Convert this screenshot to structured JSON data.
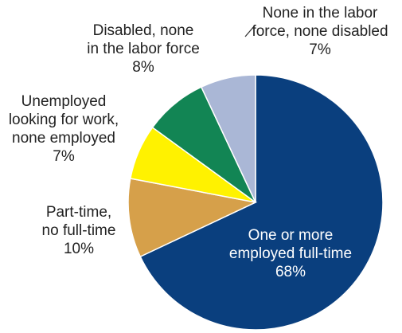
{
  "chart_data": {
    "type": "pie",
    "slices": [
      {
        "key": "fulltime",
        "lines": [
          "One or more",
          "employed full-time",
          "68%"
        ],
        "value": 68,
        "color": "#0a3f7e"
      },
      {
        "key": "parttime",
        "lines": [
          "Part-time,",
          "no full-time",
          "10%"
        ],
        "value": 10,
        "color": "#d6a04a"
      },
      {
        "key": "unemployed",
        "lines": [
          "Unemployed",
          "looking for work,",
          "none employed",
          "7%"
        ],
        "value": 7,
        "color": "#fff200"
      },
      {
        "key": "disabled",
        "lines": [
          "Disabled, none",
          "in the labor force",
          "8%"
        ],
        "value": 8,
        "color": "#128554"
      },
      {
        "key": "nolabor",
        "lines": [
          "None in the labor",
          "force, none disabled",
          "7%"
        ],
        "value": 7,
        "color": "#aab7d6"
      }
    ]
  }
}
